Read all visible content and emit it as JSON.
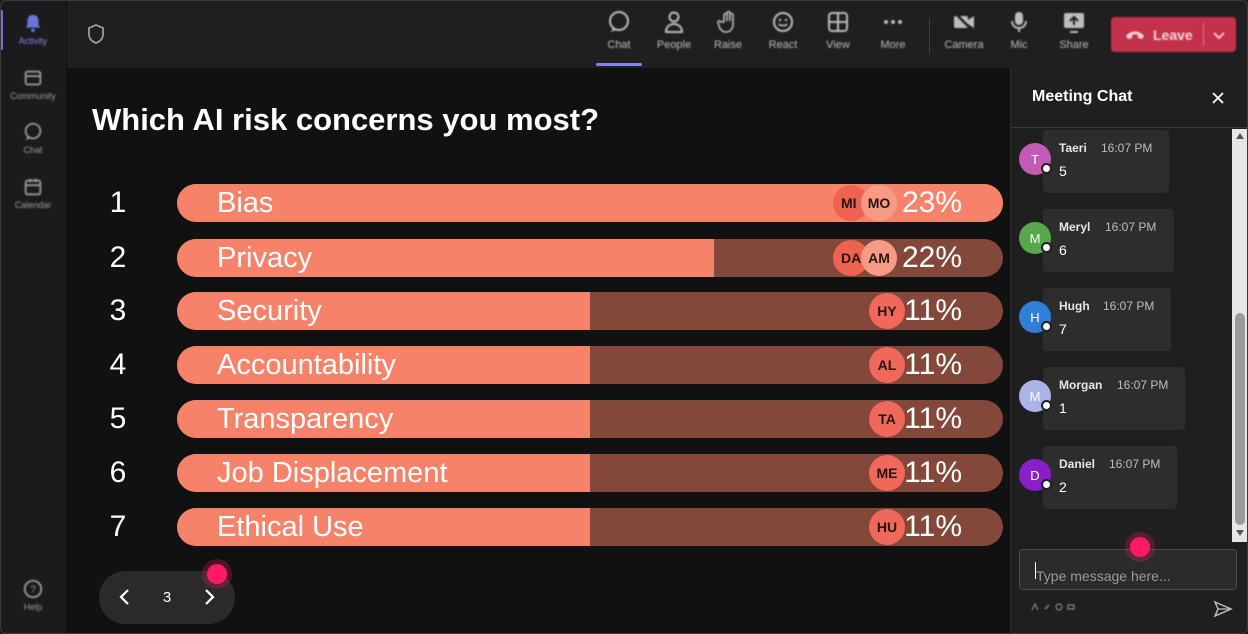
{
  "rail": {
    "items": [
      {
        "label": "Activity",
        "icon": "bell-icon"
      },
      {
        "label": "Community",
        "icon": "community-icon"
      },
      {
        "label": "Chat",
        "icon": "chat-icon"
      },
      {
        "label": "Calendar",
        "icon": "calendar-icon"
      }
    ],
    "help_label": "Help"
  },
  "topbar": {
    "buttons": [
      {
        "label": "Chat",
        "icon": "chat-icon"
      },
      {
        "label": "People",
        "icon": "people-icon"
      },
      {
        "label": "Raise",
        "icon": "hand-icon"
      },
      {
        "label": "React",
        "icon": "smiley-icon"
      },
      {
        "label": "View",
        "icon": "grid-icon"
      },
      {
        "label": "More",
        "icon": "more-icon"
      },
      {
        "label": "Camera",
        "icon": "camera-off-icon"
      },
      {
        "label": "Mic",
        "icon": "mic-icon"
      },
      {
        "label": "Share",
        "icon": "share-icon"
      }
    ],
    "leave_label": "Leave"
  },
  "poll": {
    "question": "Which AI risk concerns you most?",
    "options": [
      {
        "rank": "1",
        "label": "Bias",
        "percent": "23%",
        "fill": 1.0,
        "avatars": [
          "MI",
          "MO"
        ]
      },
      {
        "rank": "2",
        "label": "Privacy",
        "percent": "22%",
        "fill": 0.65,
        "avatars": [
          "DA",
          "AM"
        ]
      },
      {
        "rank": "3",
        "label": "Security",
        "percent": "11%",
        "fill": 0.5,
        "avatars": [
          "HY"
        ]
      },
      {
        "rank": "4",
        "label": "Accountability",
        "percent": "11%",
        "fill": 0.5,
        "avatars": [
          "AL"
        ]
      },
      {
        "rank": "5",
        "label": "Transparency",
        "percent": "11%",
        "fill": 0.5,
        "avatars": [
          "TA"
        ]
      },
      {
        "rank": "6",
        "label": "Job Displacement",
        "percent": "11%",
        "fill": 0.5,
        "avatars": [
          "ME"
        ]
      },
      {
        "rank": "7",
        "label": "Ethical Use",
        "percent": "11%",
        "fill": 0.5,
        "avatars": [
          "HU"
        ]
      }
    ]
  },
  "pager": {
    "page": "3"
  },
  "chat": {
    "title": "Meeting Chat",
    "messages": [
      {
        "initial": "T",
        "name": "Taeri",
        "time": "16:07 PM",
        "text": "5",
        "color": "#c35ab5"
      },
      {
        "initial": "M",
        "name": "Meryl",
        "time": "16:07 PM",
        "text": "6",
        "color": "#56a84a"
      },
      {
        "initial": "H",
        "name": "Hugh",
        "time": "16:07 PM",
        "text": "7",
        "color": "#2f7ed8"
      },
      {
        "initial": "M",
        "name": "Morgan",
        "time": "16:07 PM",
        "text": "1",
        "color": "#aab4e8"
      },
      {
        "initial": "D",
        "name": "Daniel",
        "time": "16:07 PM",
        "text": "2",
        "color": "#8a1fc9"
      }
    ],
    "input_placeholder": "Type message here..."
  },
  "colors": {
    "bar_fill": "#f6826a",
    "bar_track": "#834839",
    "leave": "#c4314b",
    "accent": "#7f85f5",
    "cursor": "#ff1a68"
  }
}
